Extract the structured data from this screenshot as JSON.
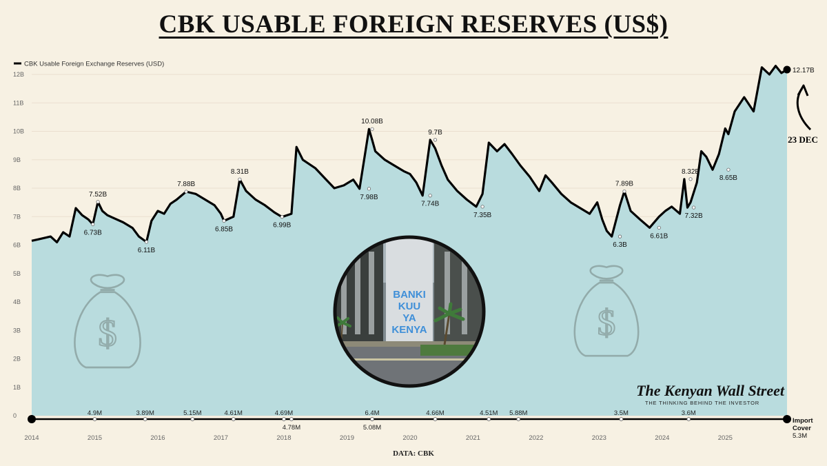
{
  "title": "CBK USABLE FOREIGN RESERVES (US$)",
  "source_note": "DATA: CBK",
  "callout": "23 DEC",
  "watermark": {
    "name": "The Kenyan Wall Street",
    "tagline": "THE THINKING BEHIND THE INVESTOR"
  },
  "photo_sign": [
    "BANKI",
    "KUU",
    "YA",
    "KENYA"
  ],
  "colors": {
    "line": "#000000",
    "area": "#b9dcde",
    "grid": "#eadfcf",
    "background": "#f7f1e3",
    "axis_text": "#666666"
  },
  "icons": [
    "money-bag-icon",
    "money-bag-icon",
    "curved-arrow-icon",
    "cbk-building-photo"
  ],
  "chart_data": {
    "type": "area",
    "legend": {
      "label": "CBK Usable Foreign Exchange Reserves (USD)",
      "position": "top-left"
    },
    "grid": true,
    "xlim": [
      2014.0,
      2025.98
    ],
    "ylim": [
      0,
      12.3
    ],
    "y_unit": "B",
    "yticks": [
      "0",
      "1B",
      "2B",
      "3B",
      "4B",
      "5B",
      "6B",
      "7B",
      "8B",
      "9B",
      "10B",
      "11B",
      "12B"
    ],
    "xticks": [
      "2014",
      "2015",
      "2016",
      "2017",
      "2018",
      "2019",
      "2020",
      "2021",
      "2022",
      "2023",
      "2024",
      "2025"
    ],
    "series": [
      {
        "name": "CBK Usable Foreign Exchange Reserves (USD)",
        "x": [
          2014.0,
          2014.1,
          2014.2,
          2014.3,
          2014.4,
          2014.5,
          2014.6,
          2014.7,
          2014.8,
          2014.9,
          2014.97,
          2015.05,
          2015.12,
          2015.2,
          2015.3,
          2015.45,
          2015.6,
          2015.7,
          2015.82,
          2015.9,
          2016.0,
          2016.1,
          2016.2,
          2016.3,
          2016.45,
          2016.6,
          2016.75,
          2016.9,
          2017.0,
          2017.05,
          2017.2,
          2017.3,
          2017.4,
          2017.55,
          2017.7,
          2017.85,
          2017.97,
          2018.12,
          2018.2,
          2018.3,
          2018.5,
          2018.65,
          2018.8,
          2018.95,
          2019.1,
          2019.2,
          2019.35,
          2019.4,
          2019.45,
          2019.6,
          2019.75,
          2019.9,
          2020.0,
          2020.1,
          2020.2,
          2020.32,
          2020.4,
          2020.5,
          2020.6,
          2020.75,
          2020.9,
          2021.05,
          2021.15,
          2021.25,
          2021.38,
          2021.5,
          2021.62,
          2021.75,
          2021.9,
          2022.05,
          2022.15,
          2022.25,
          2022.4,
          2022.55,
          2022.7,
          2022.85,
          2022.97,
          2023.05,
          2023.12,
          2023.2,
          2023.33,
          2023.4,
          2023.5,
          2023.65,
          2023.8,
          2023.95,
          2024.05,
          2024.15,
          2024.28,
          2024.35,
          2024.4,
          2024.45,
          2024.55,
          2024.62,
          2024.7,
          2024.8,
          2024.9,
          2025.0,
          2025.05,
          2025.15,
          2025.3,
          2025.45,
          2025.58,
          2025.7,
          2025.8,
          2025.89,
          2025.98
        ],
        "values": [
          6.15,
          6.2,
          6.25,
          6.3,
          6.1,
          6.45,
          6.3,
          7.3,
          7.05,
          6.9,
          6.73,
          7.52,
          7.2,
          7.05,
          6.95,
          6.8,
          6.6,
          6.3,
          6.11,
          6.85,
          7.2,
          7.1,
          7.45,
          7.6,
          7.88,
          7.8,
          7.6,
          7.4,
          7.1,
          6.85,
          7.0,
          8.31,
          7.9,
          7.6,
          7.4,
          7.15,
          6.99,
          7.1,
          9.45,
          9.0,
          8.7,
          8.35,
          8.0,
          8.1,
          8.3,
          7.98,
          10.08,
          9.7,
          9.3,
          9.0,
          8.8,
          8.6,
          8.5,
          8.2,
          7.74,
          9.7,
          9.4,
          8.8,
          8.3,
          7.9,
          7.6,
          7.35,
          7.8,
          9.6,
          9.3,
          9.55,
          9.2,
          8.8,
          8.4,
          7.9,
          8.45,
          8.2,
          7.8,
          7.5,
          7.3,
          7.1,
          7.5,
          6.9,
          6.5,
          6.3,
          7.4,
          7.89,
          7.2,
          6.9,
          6.61,
          7.0,
          7.2,
          7.35,
          7.1,
          8.32,
          7.32,
          7.5,
          8.2,
          9.3,
          9.1,
          8.65,
          9.2,
          10.1,
          9.9,
          10.7,
          11.2,
          10.7,
          12.25,
          12.0,
          12.3,
          12.05,
          12.17
        ]
      }
    ],
    "point_labels": [
      {
        "x": 2015.05,
        "value": 7.52,
        "label": "7.52B",
        "pos": "above"
      },
      {
        "x": 2014.97,
        "value": 6.73,
        "label": "6.73B",
        "pos": "below"
      },
      {
        "x": 2015.82,
        "value": 6.11,
        "label": "6.11B",
        "pos": "below"
      },
      {
        "x": 2016.45,
        "value": 7.88,
        "label": "7.88B",
        "pos": "above"
      },
      {
        "x": 2017.05,
        "value": 6.85,
        "label": "6.85B",
        "pos": "below"
      },
      {
        "x": 2017.3,
        "value": 8.31,
        "label": "8.31B",
        "pos": "above"
      },
      {
        "x": 2017.97,
        "value": 6.99,
        "label": "6.99B",
        "pos": "below"
      },
      {
        "x": 2019.4,
        "value": 10.08,
        "label": "10.08B",
        "pos": "above"
      },
      {
        "x": 2019.35,
        "value": 7.98,
        "label": "7.98B",
        "pos": "below"
      },
      {
        "x": 2020.4,
        "value": 9.7,
        "label": "9.7B",
        "pos": "above"
      },
      {
        "x": 2020.32,
        "value": 7.74,
        "label": "7.74B",
        "pos": "below"
      },
      {
        "x": 2021.15,
        "value": 7.35,
        "label": "7.35B",
        "pos": "below"
      },
      {
        "x": 2023.4,
        "value": 7.89,
        "label": "7.89B",
        "pos": "above"
      },
      {
        "x": 2023.33,
        "value": 6.3,
        "label": "6.3B",
        "pos": "below"
      },
      {
        "x": 2023.95,
        "value": 6.61,
        "label": "6.61B",
        "pos": "below"
      },
      {
        "x": 2024.45,
        "value": 8.32,
        "label": "8.32B",
        "pos": "above"
      },
      {
        "x": 2024.5,
        "value": 7.32,
        "label": "7.32B",
        "pos": "below"
      },
      {
        "x": 2025.05,
        "value": 8.65,
        "label": "8.65B",
        "pos": "below"
      },
      {
        "x": 2025.98,
        "value": 12.17,
        "label": "12.17B",
        "pos": "right",
        "endpoint": true
      }
    ],
    "import_cover": {
      "label_line1": "Import",
      "label_line2": "Cover",
      "latest": "5.3M",
      "points": [
        {
          "x": 2015.0,
          "label": "4.9M",
          "pos": "above"
        },
        {
          "x": 2015.8,
          "label": "3.89M",
          "pos": "above"
        },
        {
          "x": 2016.55,
          "label": "5.15M",
          "pos": "above"
        },
        {
          "x": 2017.2,
          "label": "4.61M",
          "pos": "above"
        },
        {
          "x": 2018.0,
          "label": "4.69M",
          "pos": "above"
        },
        {
          "x": 2018.12,
          "label": "4.78M",
          "pos": "below"
        },
        {
          "x": 2019.4,
          "label": "6.4M",
          "pos": "above"
        },
        {
          "x": 2019.4,
          "label": "5.08M",
          "pos": "below"
        },
        {
          "x": 2020.4,
          "label": "4.66M",
          "pos": "above"
        },
        {
          "x": 2021.25,
          "label": "4.51M",
          "pos": "above"
        },
        {
          "x": 2021.72,
          "label": "5.88M",
          "pos": "above"
        },
        {
          "x": 2023.35,
          "label": "3.5M",
          "pos": "above"
        },
        {
          "x": 2024.42,
          "label": "3.6M",
          "pos": "above"
        }
      ]
    }
  }
}
